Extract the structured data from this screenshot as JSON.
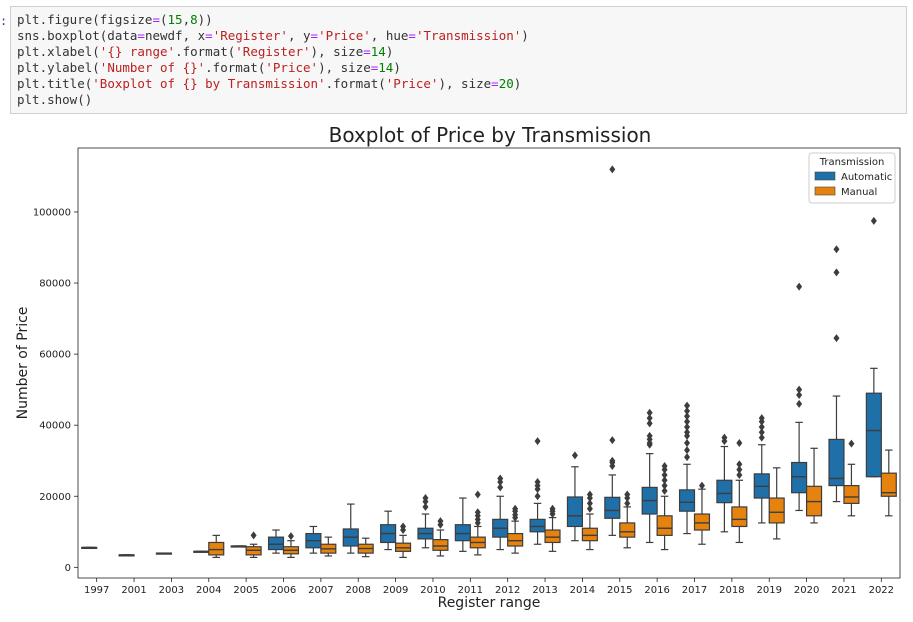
{
  "cell_prompt": ":",
  "code_lines": [
    [
      {
        "t": "plt.figure(figsize",
        "c": "plain"
      },
      {
        "t": "=",
        "c": "op"
      },
      {
        "t": "(",
        "c": "plain"
      },
      {
        "t": "15",
        "c": "num"
      },
      {
        "t": ",",
        "c": "plain"
      },
      {
        "t": "8",
        "c": "num"
      },
      {
        "t": "))",
        "c": "plain"
      }
    ],
    [
      {
        "t": "sns.boxplot(data",
        "c": "plain"
      },
      {
        "t": "=",
        "c": "op"
      },
      {
        "t": "newdf, x",
        "c": "plain"
      },
      {
        "t": "=",
        "c": "op"
      },
      {
        "t": "'Register'",
        "c": "str"
      },
      {
        "t": ", y",
        "c": "plain"
      },
      {
        "t": "=",
        "c": "op"
      },
      {
        "t": "'Price'",
        "c": "str"
      },
      {
        "t": ", hue",
        "c": "plain"
      },
      {
        "t": "=",
        "c": "op"
      },
      {
        "t": "'Transmission'",
        "c": "str"
      },
      {
        "t": ")",
        "c": "plain"
      }
    ],
    [
      {
        "t": "plt.xlabel(",
        "c": "plain"
      },
      {
        "t": "'{} range'",
        "c": "str"
      },
      {
        "t": ".format(",
        "c": "plain"
      },
      {
        "t": "'Register'",
        "c": "str"
      },
      {
        "t": "), size",
        "c": "plain"
      },
      {
        "t": "=",
        "c": "op"
      },
      {
        "t": "14",
        "c": "num"
      },
      {
        "t": ")",
        "c": "plain"
      }
    ],
    [
      {
        "t": "plt.ylabel(",
        "c": "plain"
      },
      {
        "t": "'Number of {}'",
        "c": "str"
      },
      {
        "t": ".format(",
        "c": "plain"
      },
      {
        "t": "'Price'",
        "c": "str"
      },
      {
        "t": "), size",
        "c": "plain"
      },
      {
        "t": "=",
        "c": "op"
      },
      {
        "t": "14",
        "c": "num"
      },
      {
        "t": ")",
        "c": "plain"
      }
    ],
    [
      {
        "t": "plt.title(",
        "c": "plain"
      },
      {
        "t": "'Boxplot of {} by Transmission'",
        "c": "str"
      },
      {
        "t": ".format(",
        "c": "plain"
      },
      {
        "t": "'Price'",
        "c": "str"
      },
      {
        "t": "), size",
        "c": "plain"
      },
      {
        "t": "=",
        "c": "op"
      },
      {
        "t": "20",
        "c": "num"
      },
      {
        "t": ")",
        "c": "plain"
      }
    ],
    [
      {
        "t": "plt.show()",
        "c": "plain"
      }
    ]
  ],
  "chart_data": {
    "type": "boxplot",
    "title": "Boxplot of Price by Transmission",
    "xlabel": "Register range",
    "ylabel": "Number of Price",
    "ylim": [
      -3000,
      118000
    ],
    "yticks": [
      0,
      20000,
      40000,
      60000,
      80000,
      100000
    ],
    "grid": false,
    "legend": {
      "title": "Transmission",
      "placement": "top-right"
    },
    "categories": [
      "1997",
      "2001",
      "2003",
      "2004",
      "2005",
      "2006",
      "2007",
      "2008",
      "2009",
      "2010",
      "2011",
      "2012",
      "2013",
      "2014",
      "2015",
      "2016",
      "2017",
      "2018",
      "2019",
      "2020",
      "2021",
      "2022"
    ],
    "series": [
      {
        "name": "Automatic",
        "color": "#1f6fa8",
        "boxes": [
          {
            "cat": "1997",
            "min": 5600,
            "q1": 5600,
            "median": 5600,
            "q3": 5600,
            "max": 5600,
            "outliers": []
          },
          {
            "cat": "2001",
            "min": 3500,
            "q1": 3500,
            "median": 3500,
            "q3": 3500,
            "max": 3500,
            "outliers": []
          },
          {
            "cat": "2003",
            "min": 4000,
            "q1": 4000,
            "median": 4000,
            "q3": 4000,
            "max": 4000,
            "outliers": []
          },
          {
            "cat": "2004",
            "min": 4500,
            "q1": 4500,
            "median": 4500,
            "q3": 4500,
            "max": 4500,
            "outliers": []
          },
          {
            "cat": "2005",
            "min": 6000,
            "q1": 6000,
            "median": 6000,
            "q3": 6000,
            "max": 6000,
            "outliers": []
          },
          {
            "cat": "2006",
            "min": 4000,
            "q1": 5000,
            "median": 6500,
            "q3": 8500,
            "max": 10500,
            "outliers": []
          },
          {
            "cat": "2007",
            "min": 4000,
            "q1": 5500,
            "median": 7500,
            "q3": 9500,
            "max": 11500,
            "outliers": []
          },
          {
            "cat": "2008",
            "min": 4000,
            "q1": 6000,
            "median": 8500,
            "q3": 10800,
            "max": 17800,
            "outliers": []
          },
          {
            "cat": "2009",
            "min": 5000,
            "q1": 7000,
            "median": 9500,
            "q3": 12000,
            "max": 15800,
            "outliers": []
          },
          {
            "cat": "2010",
            "min": 5500,
            "q1": 8000,
            "median": 9500,
            "q3": 11000,
            "max": 15000,
            "outliers": [
              17000,
              18500,
              19500
            ]
          },
          {
            "cat": "2011",
            "min": 4500,
            "q1": 7500,
            "median": 9500,
            "q3": 12000,
            "max": 19500,
            "outliers": []
          },
          {
            "cat": "2012",
            "min": 5000,
            "q1": 8500,
            "median": 11000,
            "q3": 13500,
            "max": 20000,
            "outliers": [
              22500,
              24000,
              25000
            ]
          },
          {
            "cat": "2013",
            "min": 6500,
            "q1": 10000,
            "median": 11500,
            "q3": 13500,
            "max": 18000,
            "outliers": [
              20000,
              22000,
              23000,
              24000,
              35500
            ]
          },
          {
            "cat": "2014",
            "min": 7500,
            "q1": 11500,
            "median": 14500,
            "q3": 19800,
            "max": 28300,
            "outliers": [
              31500
            ]
          },
          {
            "cat": "2015",
            "min": 9000,
            "q1": 13800,
            "median": 16000,
            "q3": 19700,
            "max": 26000,
            "outliers": [
              28500,
              29500,
              30000,
              35800,
              112000
            ]
          },
          {
            "cat": "2016",
            "min": 7000,
            "q1": 15000,
            "median": 18800,
            "q3": 22500,
            "max": 32000,
            "outliers": [
              34500,
              35000,
              36000,
              37000,
              40500,
              42000,
              43500
            ]
          },
          {
            "cat": "2017",
            "min": 9500,
            "q1": 15800,
            "median": 18300,
            "q3": 21800,
            "max": 29000,
            "outliers": [
              31000,
              33000,
              35000,
              37000,
              38000,
              39500,
              41000,
              42500,
              44000,
              45500
            ]
          },
          {
            "cat": "2018",
            "min": 10000,
            "q1": 18200,
            "median": 20800,
            "q3": 24500,
            "max": 34000,
            "outliers": [
              35500,
              36500
            ]
          },
          {
            "cat": "2019",
            "min": 12500,
            "q1": 19500,
            "median": 22800,
            "q3": 26300,
            "max": 34500,
            "outliers": [
              36500,
              38000,
              39500,
              41000,
              42000
            ]
          },
          {
            "cat": "2020",
            "min": 16000,
            "q1": 21000,
            "median": 25500,
            "q3": 29500,
            "max": 40800,
            "outliers": [
              46000,
              48500,
              50000,
              79000
            ]
          },
          {
            "cat": "2021",
            "min": 18500,
            "q1": 23000,
            "median": 25000,
            "q3": 36000,
            "max": 48200,
            "outliers": [
              64500,
              83000,
              89500
            ]
          },
          {
            "cat": "2022",
            "min": 25500,
            "q1": 25500,
            "median": 38500,
            "q3": 49000,
            "max": 56000,
            "outliers": [
              97500
            ]
          }
        ]
      },
      {
        "name": "Manual",
        "color": "#e6820e",
        "boxes": [
          {
            "cat": "2004",
            "min": 2800,
            "q1": 3500,
            "median": 5000,
            "q3": 7000,
            "max": 9000,
            "outliers": []
          },
          {
            "cat": "2005",
            "min": 2800,
            "q1": 3500,
            "median": 4800,
            "q3": 5800,
            "max": 6500,
            "outliers": [
              9000
            ]
          },
          {
            "cat": "2006",
            "min": 2800,
            "q1": 3800,
            "median": 4800,
            "q3": 5800,
            "max": 7500,
            "outliers": [
              8800
            ]
          },
          {
            "cat": "2007",
            "min": 3200,
            "q1": 4000,
            "median": 5200,
            "q3": 6500,
            "max": 8500,
            "outliers": []
          },
          {
            "cat": "2008",
            "min": 3000,
            "q1": 4000,
            "median": 5300,
            "q3": 6500,
            "max": 8200,
            "outliers": []
          },
          {
            "cat": "2009",
            "min": 2800,
            "q1": 4500,
            "median": 5500,
            "q3": 6800,
            "max": 9000,
            "outliers": [
              10500,
              11500
            ]
          },
          {
            "cat": "2010",
            "min": 3200,
            "q1": 4800,
            "median": 6000,
            "q3": 7800,
            "max": 10500,
            "outliers": [
              12000,
              13000
            ]
          },
          {
            "cat": "2011",
            "min": 3500,
            "q1": 5500,
            "median": 7000,
            "q3": 8500,
            "max": 11500,
            "outliers": [
              12500,
              13500,
              14500,
              15500,
              20500
            ]
          },
          {
            "cat": "2012",
            "min": 4000,
            "q1": 6000,
            "median": 7500,
            "q3": 9500,
            "max": 13000,
            "outliers": [
              14000,
              14800,
              15800,
              16500
            ]
          },
          {
            "cat": "2013",
            "min": 4500,
            "q1": 7000,
            "median": 8500,
            "q3": 10500,
            "max": 14000,
            "outliers": [
              15000,
              15800,
              16500
            ]
          },
          {
            "cat": "2014",
            "min": 5000,
            "q1": 7500,
            "median": 9000,
            "q3": 11000,
            "max": 15000,
            "outliers": [
              16500,
              18000,
              19500,
              20500
            ]
          },
          {
            "cat": "2015",
            "min": 5500,
            "q1": 8500,
            "median": 10000,
            "q3": 12500,
            "max": 17000,
            "outliers": [
              18000,
              19500,
              20500
            ]
          },
          {
            "cat": "2016",
            "min": 5000,
            "q1": 9000,
            "median": 11000,
            "q3": 14500,
            "max": 20000,
            "outliers": [
              21500,
              23000,
              24500,
              26000,
              27500,
              28500
            ]
          },
          {
            "cat": "2017",
            "min": 6500,
            "q1": 10500,
            "median": 12500,
            "q3": 15000,
            "max": 22000,
            "outliers": [
              23000
            ]
          },
          {
            "cat": "2018",
            "min": 7000,
            "q1": 11500,
            "median": 13500,
            "q3": 17000,
            "max": 24500,
            "outliers": [
              26000,
              27500,
              29000,
              35000
            ]
          },
          {
            "cat": "2019",
            "min": 8000,
            "q1": 12500,
            "median": 15500,
            "q3": 19500,
            "max": 28000,
            "outliers": []
          },
          {
            "cat": "2020",
            "min": 12500,
            "q1": 14500,
            "median": 18500,
            "q3": 22800,
            "max": 33500,
            "outliers": []
          },
          {
            "cat": "2021",
            "min": 14500,
            "q1": 18000,
            "median": 19800,
            "q3": 23000,
            "max": 29000,
            "outliers": [
              34800
            ]
          },
          {
            "cat": "2022",
            "min": 14500,
            "q1": 20000,
            "median": 21000,
            "q3": 26500,
            "max": 33000,
            "outliers": []
          }
        ]
      }
    ]
  }
}
